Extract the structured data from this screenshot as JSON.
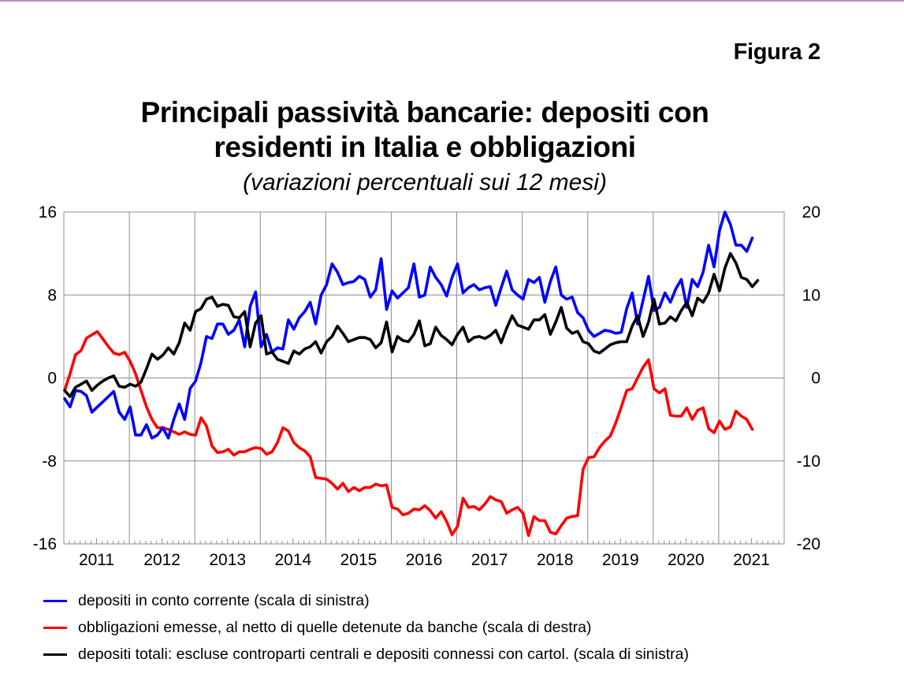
{
  "figure_label": "Figura 2",
  "title_line1": "Principali passività bancarie: depositi con",
  "title_line2": "residenti in Italia e obbligazioni",
  "subtitle": "(variazioni percentuali sui 12 mesi)",
  "chart_data": {
    "type": "line",
    "title": "Principali passività bancarie: depositi con residenti in Italia e obbligazioni",
    "subtitle": "(variazioni percentuali sui 12 mesi)",
    "xlabel": "",
    "ylabel_left": "",
    "ylabel_right": "",
    "x_start": "2011-01",
    "x_frequency": "monthly",
    "x_categories": [
      "2011",
      "2012",
      "2013",
      "2014",
      "2015",
      "2016",
      "2017",
      "2018",
      "2019",
      "2020",
      "2021"
    ],
    "xlim": [
      "2011-01",
      "2021-12"
    ],
    "ylim_left": [
      -16,
      16
    ],
    "yticks_left": [
      -16,
      -8,
      0,
      8,
      16
    ],
    "ylim_right": [
      -20,
      20
    ],
    "yticks_right": [
      -20,
      -10,
      0,
      10,
      20
    ],
    "grid": true,
    "legend_position": "bottom",
    "series": [
      {
        "name": "depositi in conto corrente (scala di sinistra)",
        "axis": "left",
        "color": "#0000ff",
        "values": [
          -2.0,
          -2.8,
          -1.2,
          -1.3,
          -1.7,
          -3.3,
          -2.8,
          -2.3,
          -1.8,
          -1.3,
          -3.3,
          -4.0,
          -2.8,
          -5.5,
          -5.5,
          -4.5,
          -5.8,
          -5.5,
          -4.8,
          -5.8,
          -4.0,
          -2.5,
          -4.0,
          -1.0,
          -0.3,
          1.5,
          4.0,
          3.8,
          5.2,
          5.2,
          4.2,
          4.6,
          5.6,
          3.0,
          6.9,
          8.3,
          3.0,
          4.2,
          2.5,
          2.9,
          2.8,
          5.6,
          4.7,
          5.8,
          6.4,
          7.3,
          5.2,
          8.0,
          9.0,
          11.0,
          10.2,
          9.0,
          9.2,
          9.3,
          9.8,
          9.5,
          7.8,
          8.5,
          11.5,
          6.6,
          8.4,
          7.7,
          8.2,
          8.7,
          11.0,
          7.8,
          8.0,
          10.7,
          9.7,
          9.0,
          7.9,
          9.7,
          11.0,
          8.2,
          8.7,
          9.0,
          8.5,
          8.7,
          8.8,
          7.0,
          8.7,
          10.3,
          8.5,
          8.0,
          7.6,
          9.5,
          9.2,
          9.7,
          7.3,
          9.3,
          10.7,
          8.0,
          7.6,
          7.8,
          6.3,
          5.8,
          4.6,
          4.0,
          4.3,
          4.6,
          4.5,
          4.3,
          4.4,
          6.7,
          8.2,
          5.2,
          7.5,
          9.8,
          6.5,
          6.8,
          8.2,
          7.3,
          8.6,
          9.5,
          6.8,
          9.5,
          8.8,
          10.2,
          12.8,
          10.7,
          14.2,
          16.0,
          14.8,
          12.8,
          12.8,
          12.2,
          13.5
        ]
      },
      {
        "name": "obbligazioni emesse, al netto di quelle detenute da banche (scala di destra)",
        "axis": "right",
        "color": "#ff0000",
        "values": [
          -1.5,
          0.5,
          2.8,
          3.3,
          4.8,
          5.2,
          5.6,
          4.7,
          3.8,
          3.0,
          2.8,
          3.1,
          2.0,
          0.5,
          -1.5,
          -3.5,
          -5.0,
          -6.0,
          -6.0,
          -6.2,
          -6.5,
          -6.8,
          -6.5,
          -6.8,
          -6.9,
          -4.8,
          -5.8,
          -8.2,
          -9.0,
          -8.9,
          -8.6,
          -9.3,
          -8.9,
          -8.9,
          -8.6,
          -8.4,
          -8.5,
          -9.2,
          -8.9,
          -7.8,
          -6.0,
          -6.4,
          -7.8,
          -8.4,
          -8.8,
          -9.5,
          -12.0,
          -12.1,
          -12.2,
          -12.7,
          -13.4,
          -12.7,
          -13.7,
          -13.2,
          -13.6,
          -13.2,
          -13.2,
          -12.8,
          -13.0,
          -12.9,
          -15.6,
          -15.8,
          -16.5,
          -16.3,
          -15.8,
          -15.9,
          -15.4,
          -16.0,
          -16.9,
          -16.1,
          -17.3,
          -18.9,
          -17.9,
          -14.5,
          -15.6,
          -15.5,
          -15.9,
          -15.2,
          -14.3,
          -14.7,
          -14.9,
          -16.3,
          -15.9,
          -15.6,
          -16.3,
          -19.0,
          -16.7,
          -17.2,
          -17.2,
          -18.6,
          -18.8,
          -17.8,
          -16.9,
          -16.7,
          -16.6,
          -11.0,
          -9.6,
          -9.5,
          -8.4,
          -7.6,
          -7.0,
          -5.4,
          -3.5,
          -1.5,
          -1.3,
          0.0,
          1.3,
          2.2,
          -1.3,
          -1.8,
          -1.3,
          -4.5,
          -4.6,
          -4.6,
          -3.6,
          -5.0,
          -3.9,
          -3.6,
          -6.1,
          -6.6,
          -5.2,
          -6.2,
          -5.9,
          -4.0,
          -4.6,
          -5.0,
          -6.2
        ]
      },
      {
        "name": "depositi totali: escluse controparti centrali e depositi connessi con cartol. (scala di sinistra)",
        "axis": "left",
        "color": "#000000",
        "values": [
          -1.2,
          -1.8,
          -0.9,
          -0.6,
          -0.3,
          -1.2,
          -0.7,
          -0.3,
          0.0,
          0.2,
          -0.8,
          -0.9,
          -0.6,
          -0.8,
          -0.4,
          0.9,
          2.3,
          1.8,
          2.2,
          2.9,
          2.3,
          3.4,
          5.3,
          4.6,
          6.4,
          6.7,
          7.6,
          7.8,
          6.9,
          7.1,
          7.0,
          5.9,
          5.8,
          6.4,
          3.0,
          5.3,
          6.0,
          2.3,
          2.5,
          1.8,
          1.6,
          1.4,
          2.6,
          2.3,
          2.8,
          3.0,
          3.5,
          2.4,
          3.5,
          4.0,
          5.0,
          4.3,
          3.5,
          3.7,
          3.9,
          3.9,
          3.7,
          2.9,
          3.4,
          5.4,
          2.5,
          4.0,
          3.6,
          3.5,
          4.2,
          5.5,
          3.1,
          3.3,
          4.9,
          4.1,
          3.7,
          3.2,
          4.2,
          4.9,
          3.5,
          3.9,
          4.0,
          3.8,
          4.1,
          4.6,
          3.4,
          4.8,
          6.0,
          5.1,
          4.9,
          4.7,
          5.6,
          5.6,
          6.1,
          4.2,
          5.4,
          6.8,
          4.8,
          4.3,
          4.5,
          3.5,
          3.3,
          2.6,
          2.4,
          2.8,
          3.2,
          3.4,
          3.5,
          3.5,
          5.0,
          6.0,
          4.0,
          5.4,
          7.6,
          5.2,
          5.3,
          5.9,
          5.5,
          6.5,
          7.3,
          6.0,
          7.7,
          7.3,
          8.2,
          10.0,
          8.4,
          10.6,
          12.0,
          11.1,
          9.7,
          9.5,
          8.8,
          9.4
        ]
      }
    ]
  },
  "legend": [
    {
      "label": "depositi in conto corrente (scala di sinistra)",
      "color": "#0000ff"
    },
    {
      "label": "obbligazioni emesse, al netto di quelle detenute da banche (scala di destra)",
      "color": "#ff0000"
    },
    {
      "label": "depositi totali: escluse controparti centrali e depositi connessi con cartol. (scala di sinistra)",
      "color": "#000000"
    }
  ]
}
